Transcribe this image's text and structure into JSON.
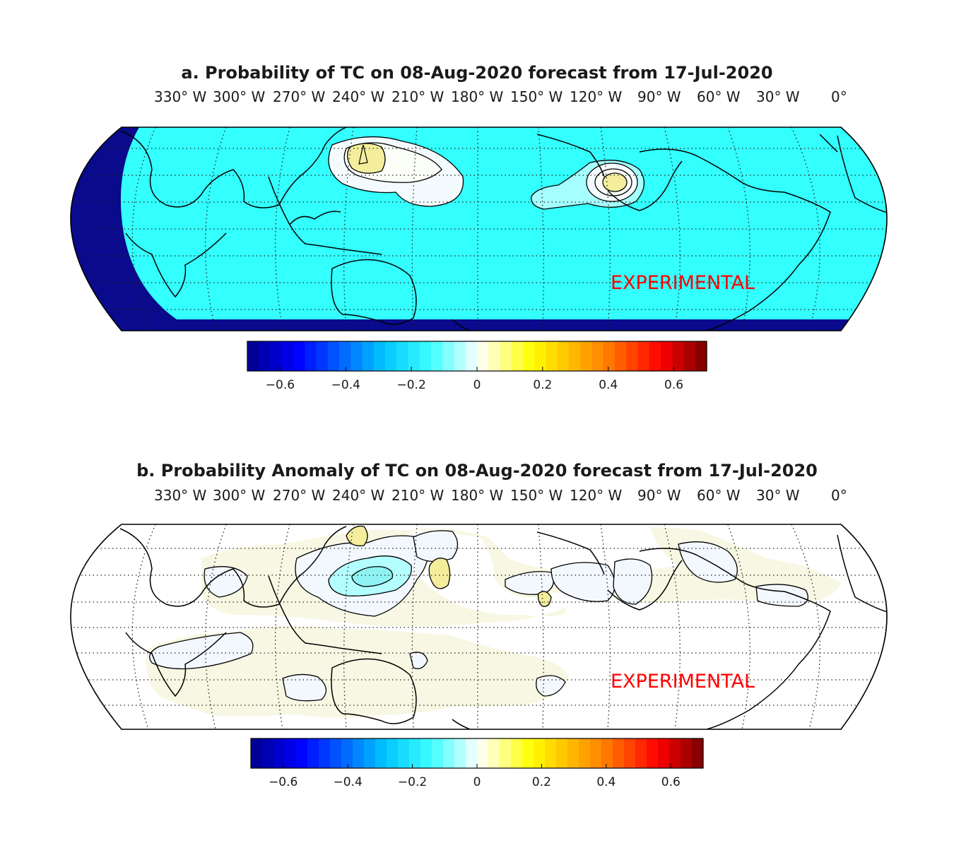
{
  "chart_data": [
    {
      "type": "heatmap",
      "panel": "a",
      "title": "a. Probability of TC on 08-Aug-2020 forecast from 17-Jul-2020",
      "longitude_labels": [
        "330° W",
        "300° W",
        "270° W",
        "240° W",
        "210° W",
        "180° W",
        "150° W",
        "120° W",
        "90° W",
        "60° W",
        "30° W",
        "0°"
      ],
      "colorbar": {
        "min": -0.7,
        "max": 0.7,
        "ticks": [
          -0.6,
          -0.4,
          -0.2,
          0,
          0.2,
          0.4,
          0.6
        ],
        "tick_labels": [
          "−0.6",
          "−0.4",
          "−0.2",
          "0",
          "0.2",
          "0.4",
          "0.6"
        ]
      },
      "background_value": -0.25,
      "features": [
        {
          "name": "West Pacific maximum",
          "lon": 130,
          "lat": 25,
          "peak_value": 0.15
        },
        {
          "name": "East Pacific maximum",
          "lon": -100,
          "lat": 15,
          "peak_value": 0.15
        }
      ],
      "watermark": "EXPERIMENTAL"
    },
    {
      "type": "heatmap",
      "panel": "b",
      "title": "b. Probability Anomaly of TC on 08-Aug-2020 forecast from 17-Jul-2020",
      "longitude_labels": [
        "330° W",
        "300° W",
        "270° W",
        "240° W",
        "210° W",
        "180° W",
        "150° W",
        "120° W",
        "90° W",
        "60° W",
        "30° W",
        "0°"
      ],
      "colorbar": {
        "min": -0.7,
        "max": 0.7,
        "ticks": [
          -0.6,
          -0.4,
          -0.2,
          0,
          0.2,
          0.4,
          0.6
        ],
        "tick_labels": [
          "−0.6",
          "−0.4",
          "−0.2",
          "0",
          "0.2",
          "0.4",
          "0.6"
        ]
      },
      "background_value": 0,
      "features": [
        {
          "name": "Northwest Pacific negative anomaly",
          "lon": 130,
          "lat": 22,
          "peak_value": -0.2
        },
        {
          "name": "Positive anomaly near Japan",
          "lon": 145,
          "lat": 38,
          "peak_value": 0.1
        },
        {
          "name": "Central Pacific positive anomaly",
          "lon": 160,
          "lat": 22,
          "peak_value": 0.1
        },
        {
          "name": "Eastern Pacific positive anomaly",
          "lon": -175,
          "lat": 12,
          "peak_value": 0.1
        }
      ],
      "watermark": "EXPERIMENTAL"
    }
  ],
  "colors": {
    "background": "#ffffff",
    "panel_a_fill": "#33ffff",
    "panel_a_off_domain": "#0a0a8c",
    "watermark": "#ff0000",
    "coast": "#000000"
  }
}
